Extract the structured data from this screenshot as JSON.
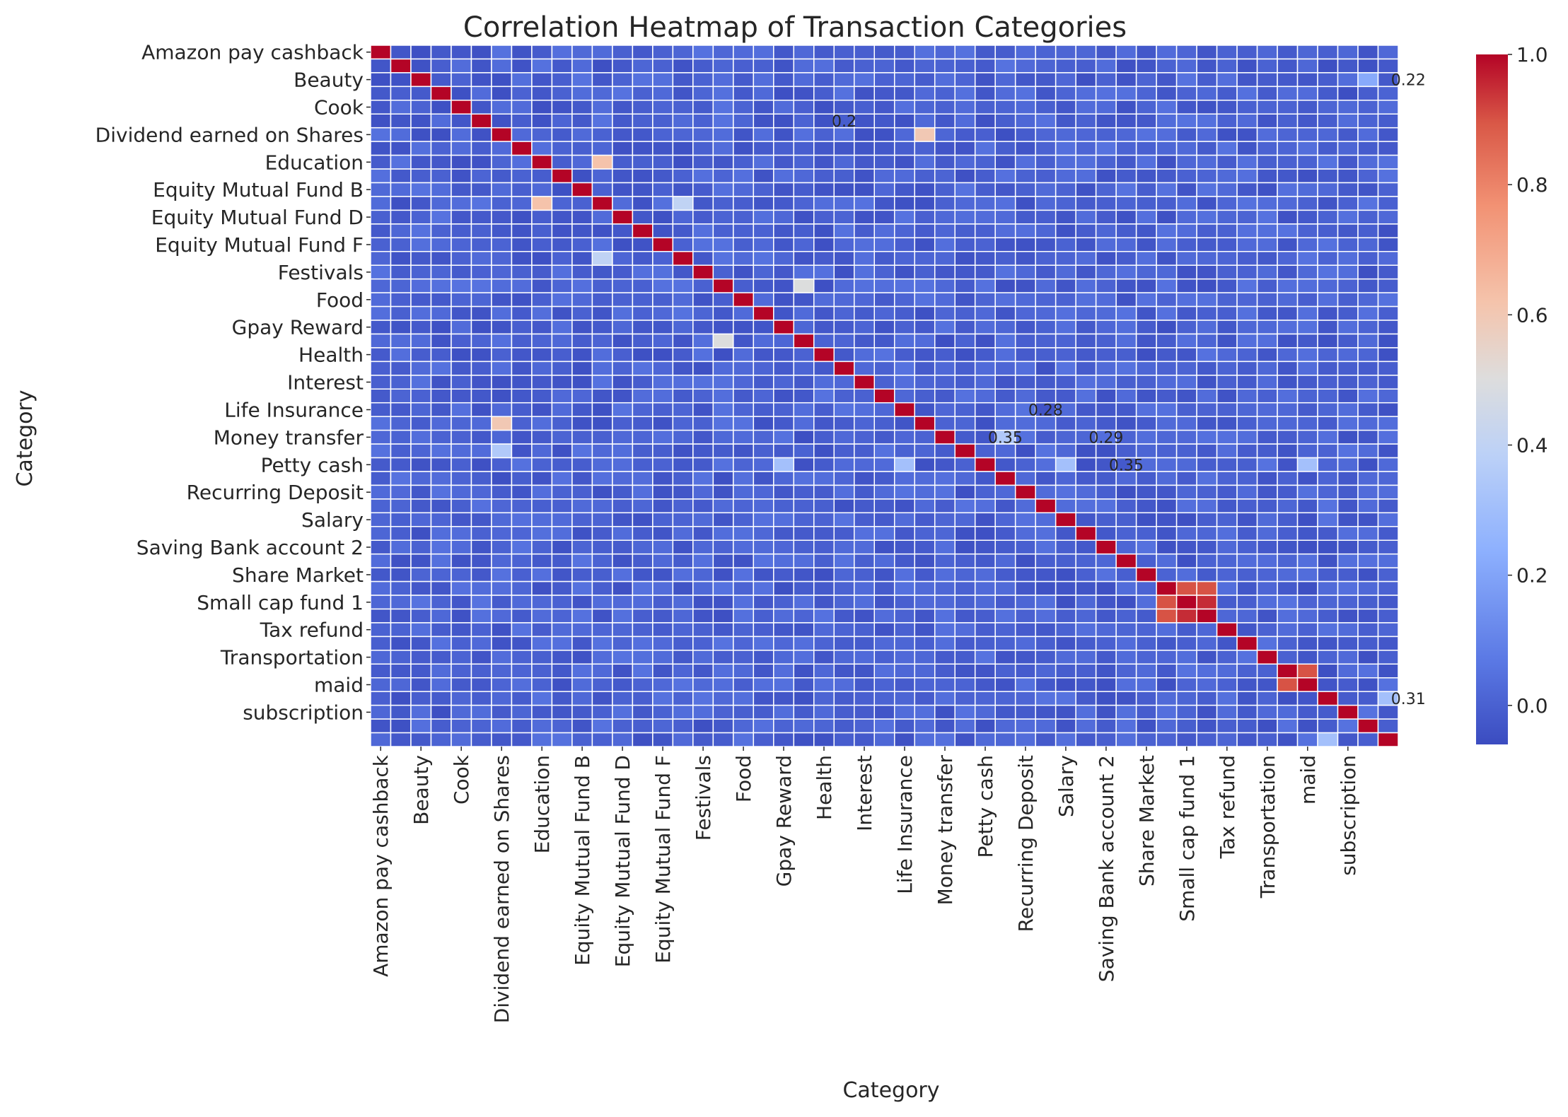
{
  "chart_data": {
    "type": "heatmap",
    "title": "Correlation Heatmap of Transaction Categories",
    "xlabel": "Category",
    "ylabel": "Category",
    "colormap": "coolwarm",
    "colors": {
      "low": "#3b4cc0",
      "mid": "#dddddd",
      "high": "#b40426"
    },
    "color_range": [
      -0.06,
      1.0
    ],
    "colorbar_ticks": [
      "0.0",
      "0.2",
      "0.4",
      "0.6",
      "0.8",
      "1.0"
    ],
    "colorbar_tick_values": [
      0.0,
      0.2,
      0.4,
      0.6,
      0.8,
      1.0
    ],
    "n_categories": 51,
    "tick_labels": [
      "Amazon pay cashback",
      "Beauty",
      "Cook",
      "Dividend earned on Shares",
      "Education",
      "Equity Mutual Fund B",
      "Equity Mutual Fund D",
      "Equity Mutual Fund F",
      "Festivals",
      "Food",
      "Gpay Reward",
      "Health",
      "Interest",
      "Life Insurance",
      "Money transfer",
      "Petty cash",
      "Recurring Deposit",
      "Salary",
      "Saving Bank account 2",
      "Share Market",
      "Small cap fund 1",
      "Tax refund",
      "Transportation",
      "maid",
      "subscription"
    ],
    "tick_label_rows": [
      0,
      2,
      4,
      6,
      8,
      10,
      12,
      14,
      16,
      18,
      20,
      22,
      24,
      26,
      28,
      30,
      32,
      34,
      36,
      38,
      40,
      42,
      44,
      46,
      48
    ],
    "diagonal_value": 1.0,
    "notable_cells": [
      {
        "row": 8,
        "col": 11,
        "value": 0.62
      },
      {
        "row": 11,
        "col": 8,
        "value": 0.62
      },
      {
        "row": 11,
        "col": 15,
        "value": 0.4
      },
      {
        "row": 15,
        "col": 11,
        "value": 0.4
      },
      {
        "row": 17,
        "col": 21,
        "value": 0.5
      },
      {
        "row": 21,
        "col": 17,
        "value": 0.5
      },
      {
        "row": 27,
        "col": 6,
        "value": 0.6
      },
      {
        "row": 6,
        "col": 27,
        "value": 0.6
      },
      {
        "row": 40,
        "col": 39,
        "value": 0.9
      },
      {
        "row": 39,
        "col": 40,
        "value": 0.9
      },
      {
        "row": 40,
        "col": 41,
        "value": 0.95
      },
      {
        "row": 41,
        "col": 40,
        "value": 0.95
      },
      {
        "row": 39,
        "col": 41,
        "value": 0.9
      },
      {
        "row": 41,
        "col": 39,
        "value": 0.9
      },
      {
        "row": 46,
        "col": 45,
        "value": 0.9
      },
      {
        "row": 45,
        "col": 46,
        "value": 0.9
      },
      {
        "row": 2,
        "col": 49,
        "value": 0.22
      },
      {
        "row": 47,
        "col": 50,
        "value": 0.31
      },
      {
        "row": 50,
        "col": 47,
        "value": 0.31
      },
      {
        "row": 30,
        "col": 20,
        "value": 0.31
      },
      {
        "row": 30,
        "col": 26,
        "value": 0.31
      },
      {
        "row": 30,
        "col": 34,
        "value": 0.31
      },
      {
        "row": 30,
        "col": 46,
        "value": 0.31
      },
      {
        "row": 28,
        "col": 31,
        "value": 0.35
      },
      {
        "row": 29,
        "col": 6,
        "value": 0.35
      }
    ],
    "printed_annotations": [
      {
        "row": 2,
        "col": 51,
        "text": "0.22"
      },
      {
        "row": 47,
        "col": 51,
        "text": "0.31"
      },
      {
        "row": 28,
        "col": 31,
        "text": "0.35"
      },
      {
        "row": 26,
        "col": 33,
        "text": "0.28"
      },
      {
        "row": 30,
        "col": 37,
        "text": "0.35"
      },
      {
        "row": 28,
        "col": 36,
        "text": "0.29"
      },
      {
        "row": 5,
        "col": 23,
        "text": "0.2"
      }
    ]
  }
}
